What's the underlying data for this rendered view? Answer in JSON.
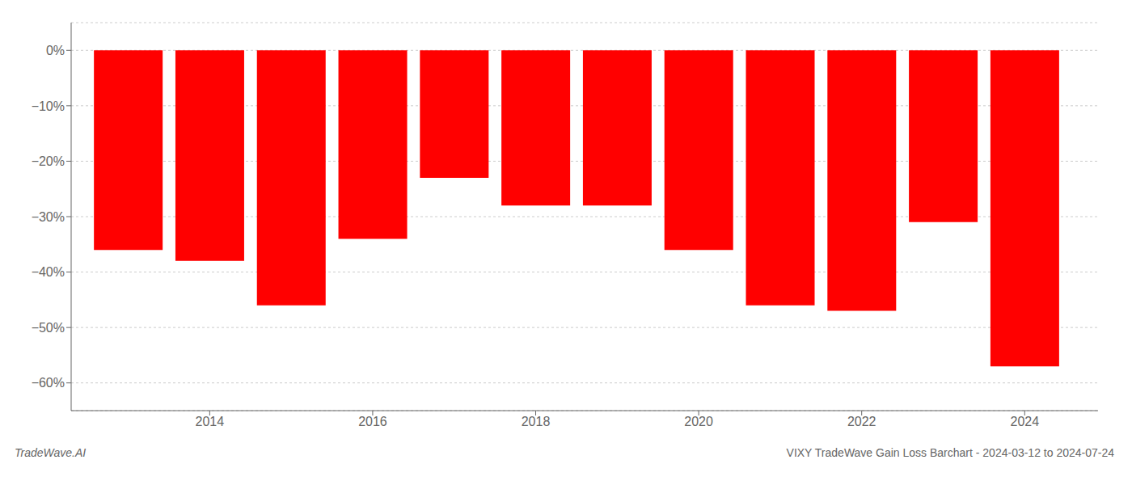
{
  "chart_data": {
    "type": "bar",
    "title": "VIXY TradeWave Gain Loss Barchart - 2024-03-12 to 2024-07-24",
    "annotations": [
      "TradeWave.AI"
    ],
    "x": [
      2013,
      2014,
      2015,
      2016,
      2017,
      2018,
      2019,
      2020,
      2021,
      2022,
      2023,
      2024
    ],
    "values": [
      -0.36,
      -0.38,
      -0.46,
      -0.34,
      -0.23,
      -0.28,
      -0.28,
      -0.36,
      -0.46,
      -0.47,
      -0.31,
      -0.57
    ],
    "color": "#ff0000",
    "xlim": [
      2012.3,
      2024.9
    ],
    "xticks": [
      2014,
      2016,
      2018,
      2020,
      2022,
      2024
    ],
    "ylim": [
      -0.65,
      0.05
    ],
    "yticks": [
      {
        "value": 0.0,
        "label": "0%"
      },
      {
        "value": -0.1,
        "label": "−10%"
      },
      {
        "value": -0.2,
        "label": "−20%"
      },
      {
        "value": -0.3,
        "label": "−30%"
      },
      {
        "value": -0.4,
        "label": "−40%"
      },
      {
        "value": -0.5,
        "label": "−50%"
      },
      {
        "value": -0.6,
        "label": "−60%"
      }
    ],
    "grid": "y"
  }
}
